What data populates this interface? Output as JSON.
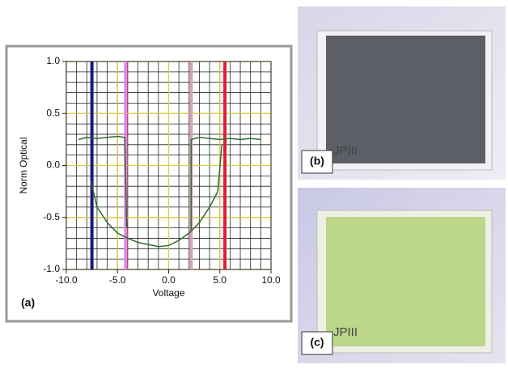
{
  "chart_data": {
    "type": "line",
    "xlabel": "Voltage",
    "ylabel": "Norm  Optical",
    "xlim": [
      -10,
      10
    ],
    "ylim": [
      -1,
      1
    ],
    "xticks": [
      {
        "value": -10,
        "label": "-10.0"
      },
      {
        "value": -5,
        "label": "-5.0"
      },
      {
        "value": 0,
        "label": "0.0"
      },
      {
        "value": 5,
        "label": "5.0"
      },
      {
        "value": 10,
        "label": "10.0"
      }
    ],
    "yticks": [
      {
        "value": 1,
        "label": "1.0"
      },
      {
        "value": 0.5,
        "label": "0.5"
      },
      {
        "value": 0,
        "label": "0.0"
      },
      {
        "value": -0.5,
        "label": "-0.5"
      },
      {
        "value": -1,
        "label": "-1.0"
      }
    ],
    "grid": true,
    "minor_grid": {
      "x": 1,
      "y": 0.1
    },
    "cursors": [
      {
        "x": -7.5,
        "color": "#1a1a7a"
      },
      {
        "x": -4.2,
        "color": "#f080e0"
      },
      {
        "x": 2.2,
        "color": "#d8a0c0"
      },
      {
        "x": 5.5,
        "color": "#e02030"
      }
    ],
    "series": [
      {
        "color": "#2e6b2e",
        "x": [
          -8.8,
          -8,
          -7,
          -6,
          -5,
          -4.3,
          -4.1
        ],
        "values": [
          0.25,
          0.27,
          0.26,
          0.27,
          0.28,
          0.27,
          -0.6
        ]
      },
      {
        "color": "#2e6b2e",
        "x": [
          -7.6,
          -7,
          -6,
          -5,
          -4,
          -3,
          -2,
          -1,
          0,
          1,
          2,
          3,
          4,
          4.8,
          5.2
        ],
        "values": [
          -0.15,
          -0.4,
          -0.55,
          -0.65,
          -0.7,
          -0.74,
          -0.76,
          -0.78,
          -0.77,
          -0.72,
          -0.65,
          -0.55,
          -0.4,
          -0.25,
          0.2
        ]
      },
      {
        "color": "#2e6b2e",
        "x": [
          2.2,
          2.2,
          3,
          4,
          5,
          6,
          7,
          8,
          9
        ],
        "values": [
          -0.62,
          0.25,
          0.27,
          0.26,
          0.25,
          0.26,
          0.25,
          0.26,
          0.25
        ]
      }
    ]
  },
  "panels": {
    "a": "(a)",
    "b": "(b)",
    "c": "(c)",
    "b_text": "JPIII",
    "c_text": "JPIII"
  }
}
